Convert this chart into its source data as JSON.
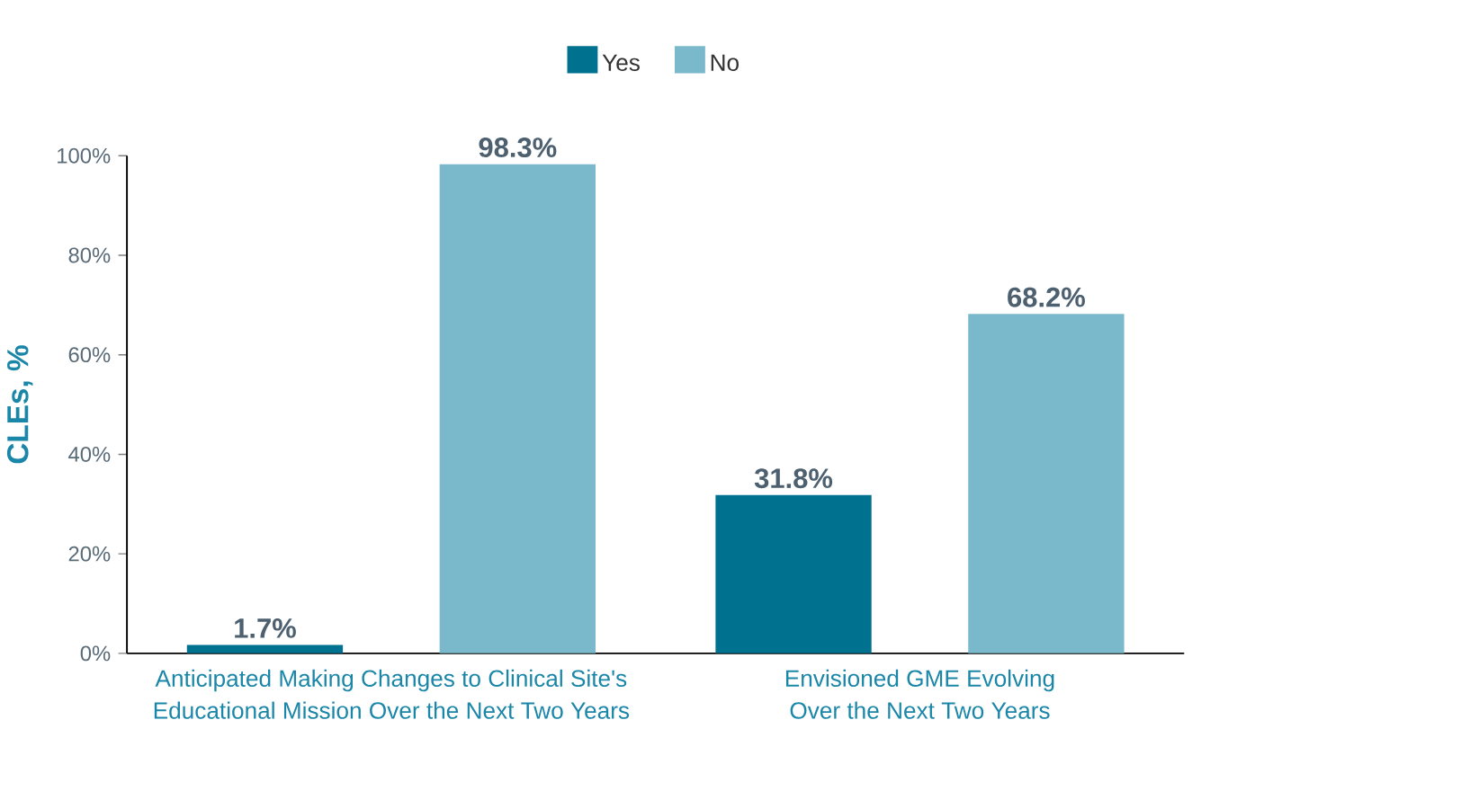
{
  "chart_data": {
    "type": "bar",
    "ylabel": "CLEs, %",
    "categories": [
      "Anticipated Making Changes to Clinical Site's Educational Mission Over the Next Two Years",
      "Envisioned GME Evolving Over the Next Two Years"
    ],
    "series": [
      {
        "name": "Yes",
        "color": "#00728f",
        "values": [
          1.7,
          31.8
        ],
        "value_labels": [
          "1.7%",
          "31.8%"
        ]
      },
      {
        "name": "No",
        "color": "#7ab8cc",
        "values": [
          98.3,
          68.2
        ],
        "value_labels": [
          "98.3%",
          "68.2%"
        ]
      }
    ],
    "ylim": [
      0,
      100
    ],
    "yticks": [
      {
        "value": 0,
        "label": "0%"
      },
      {
        "value": 20,
        "label": "20%"
      },
      {
        "value": 40,
        "label": "40%"
      },
      {
        "value": 60,
        "label": "60%"
      },
      {
        "value": 80,
        "label": "80%"
      },
      {
        "value": 100,
        "label": "100%"
      }
    ],
    "legend": "top",
    "grid": false
  }
}
